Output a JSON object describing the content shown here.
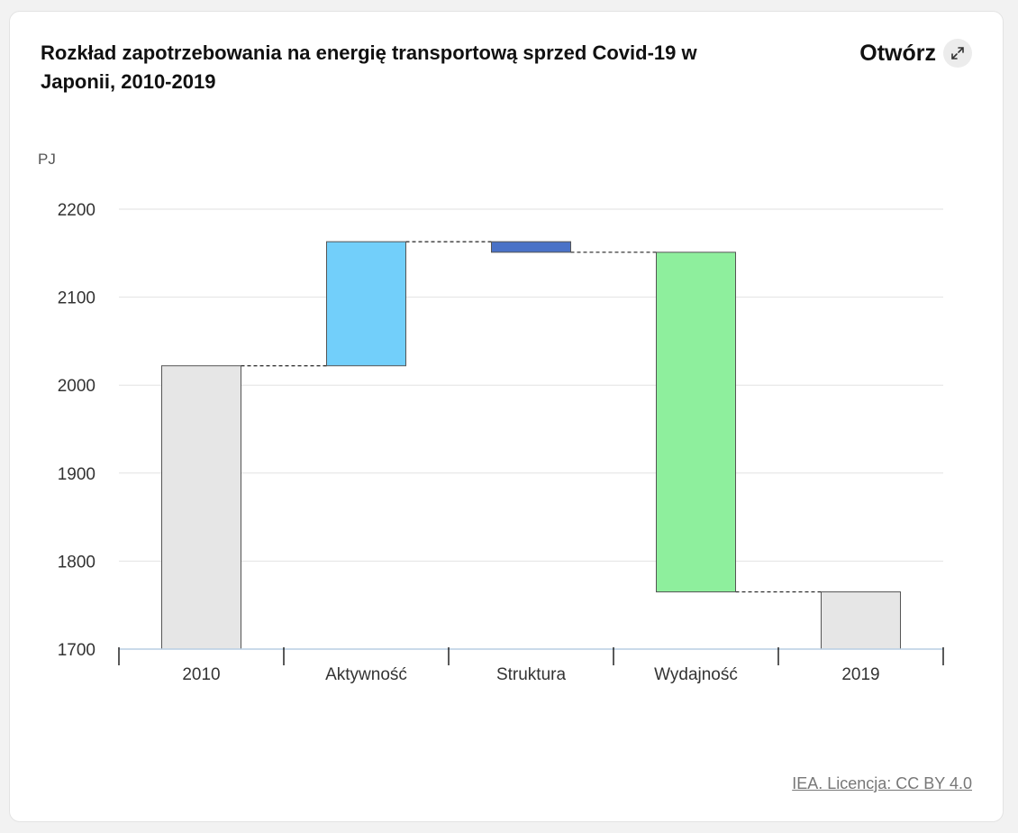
{
  "header": {
    "title": "Rozkład zapotrzebowania na energię transportową sprzed Covid-19 w Japonii, 2010-2019",
    "open_label": "Otwórz",
    "open_icon": "expand-arrows-icon"
  },
  "footer": {
    "license": "IEA. Licencja: CC BY 4.0"
  },
  "chart_data": {
    "type": "waterfall",
    "unit_label": "PJ",
    "ylim": [
      1700,
      2200
    ],
    "y_ticks": [
      "1700",
      "1800",
      "1900",
      "2000",
      "2100",
      "2200"
    ],
    "categories": [
      "2010",
      "Aktywność",
      "Struktura",
      "Wydajność",
      "2019"
    ],
    "bars": [
      {
        "category": "2010",
        "kind": "total",
        "start": 1700,
        "end": 2022,
        "color": "#e6e6e6"
      },
      {
        "category": "Aktywność",
        "kind": "delta",
        "start": 2022,
        "end": 2163,
        "color": "#72cffa"
      },
      {
        "category": "Struktura",
        "kind": "delta",
        "start": 2163,
        "end": 2151,
        "color": "#4a72c7"
      },
      {
        "category": "Wydajność",
        "kind": "delta",
        "start": 2151,
        "end": 1765,
        "color": "#8eef9d"
      },
      {
        "category": "2019",
        "kind": "total",
        "start": 1700,
        "end": 1765,
        "color": "#e6e6e6"
      }
    ],
    "grid": true,
    "connector_lines": true
  }
}
